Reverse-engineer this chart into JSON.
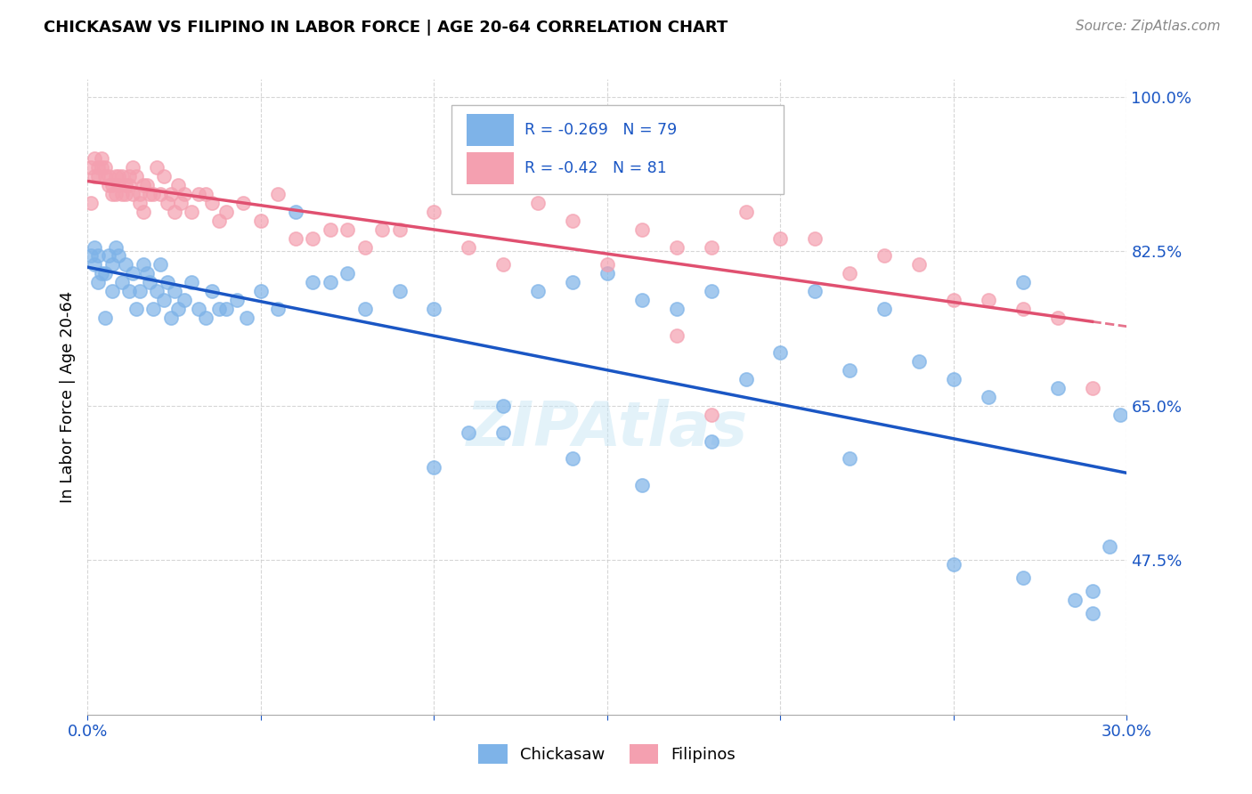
{
  "title": "CHICKASAW VS FILIPINO IN LABOR FORCE | AGE 20-64 CORRELATION CHART",
  "source": "Source: ZipAtlas.com",
  "ylabel": "In Labor Force | Age 20-64",
  "xlim": [
    0.0,
    0.3
  ],
  "ylim": [
    0.3,
    1.02
  ],
  "yticks": [
    0.475,
    0.65,
    0.825,
    1.0
  ],
  "ytick_labels": [
    "47.5%",
    "65.0%",
    "82.5%",
    "100.0%"
  ],
  "xticks": [
    0.0,
    0.05,
    0.1,
    0.15,
    0.2,
    0.25,
    0.3
  ],
  "xtick_labels": [
    "0.0%",
    "",
    "",
    "",
    "",
    "",
    "30.0%"
  ],
  "chickasaw_R": -0.269,
  "chickasaw_N": 79,
  "filipino_R": -0.42,
  "filipino_N": 81,
  "chickasaw_color": "#7EB3E8",
  "filipino_color": "#F4A0B0",
  "trendline_chickasaw_color": "#1A56C4",
  "trendline_filipino_color": "#E05070",
  "watermark": "ZIPAtlas",
  "legend_label_chickasaw": "Chickasaw",
  "legend_label_filipino": "Filipinos",
  "chickasaw_x": [
    0.001,
    0.002,
    0.002,
    0.003,
    0.003,
    0.004,
    0.005,
    0.005,
    0.006,
    0.007,
    0.007,
    0.008,
    0.009,
    0.01,
    0.011,
    0.012,
    0.013,
    0.014,
    0.015,
    0.016,
    0.017,
    0.018,
    0.019,
    0.02,
    0.021,
    0.022,
    0.023,
    0.024,
    0.025,
    0.026,
    0.028,
    0.03,
    0.032,
    0.034,
    0.036,
    0.038,
    0.04,
    0.043,
    0.046,
    0.05,
    0.055,
    0.06,
    0.065,
    0.07,
    0.075,
    0.08,
    0.09,
    0.1,
    0.11,
    0.12,
    0.13,
    0.14,
    0.15,
    0.16,
    0.17,
    0.18,
    0.19,
    0.2,
    0.21,
    0.22,
    0.23,
    0.24,
    0.25,
    0.26,
    0.27,
    0.28,
    0.285,
    0.29,
    0.295,
    0.298,
    0.1,
    0.12,
    0.14,
    0.16,
    0.18,
    0.22,
    0.25,
    0.27,
    0.29
  ],
  "chickasaw_y": [
    0.82,
    0.81,
    0.83,
    0.79,
    0.82,
    0.8,
    0.75,
    0.8,
    0.82,
    0.81,
    0.78,
    0.83,
    0.82,
    0.79,
    0.81,
    0.78,
    0.8,
    0.76,
    0.78,
    0.81,
    0.8,
    0.79,
    0.76,
    0.78,
    0.81,
    0.77,
    0.79,
    0.75,
    0.78,
    0.76,
    0.77,
    0.79,
    0.76,
    0.75,
    0.78,
    0.76,
    0.76,
    0.77,
    0.75,
    0.78,
    0.76,
    0.87,
    0.79,
    0.79,
    0.8,
    0.76,
    0.78,
    0.76,
    0.62,
    0.65,
    0.78,
    0.79,
    0.8,
    0.77,
    0.76,
    0.78,
    0.68,
    0.71,
    0.78,
    0.69,
    0.76,
    0.7,
    0.68,
    0.66,
    0.79,
    0.67,
    0.43,
    0.44,
    0.49,
    0.64,
    0.58,
    0.62,
    0.59,
    0.56,
    0.61,
    0.59,
    0.47,
    0.455,
    0.415
  ],
  "filipino_x": [
    0.001,
    0.001,
    0.002,
    0.002,
    0.003,
    0.003,
    0.004,
    0.004,
    0.005,
    0.005,
    0.006,
    0.006,
    0.007,
    0.007,
    0.008,
    0.008,
    0.009,
    0.009,
    0.01,
    0.01,
    0.011,
    0.011,
    0.012,
    0.012,
    0.013,
    0.013,
    0.014,
    0.015,
    0.015,
    0.016,
    0.016,
    0.017,
    0.018,
    0.019,
    0.02,
    0.021,
    0.022,
    0.023,
    0.024,
    0.025,
    0.026,
    0.027,
    0.028,
    0.03,
    0.032,
    0.034,
    0.036,
    0.038,
    0.04,
    0.045,
    0.05,
    0.055,
    0.06,
    0.065,
    0.07,
    0.075,
    0.08,
    0.085,
    0.09,
    0.1,
    0.11,
    0.12,
    0.13,
    0.14,
    0.15,
    0.16,
    0.17,
    0.18,
    0.19,
    0.2,
    0.21,
    0.22,
    0.23,
    0.24,
    0.25,
    0.26,
    0.27,
    0.28,
    0.29,
    0.17,
    0.18
  ],
  "filipino_y": [
    0.92,
    0.88,
    0.91,
    0.93,
    0.92,
    0.91,
    0.92,
    0.93,
    0.91,
    0.92,
    0.91,
    0.9,
    0.89,
    0.9,
    0.91,
    0.89,
    0.9,
    0.91,
    0.89,
    0.91,
    0.9,
    0.89,
    0.91,
    0.9,
    0.92,
    0.89,
    0.91,
    0.88,
    0.89,
    0.9,
    0.87,
    0.9,
    0.89,
    0.89,
    0.92,
    0.89,
    0.91,
    0.88,
    0.89,
    0.87,
    0.9,
    0.88,
    0.89,
    0.87,
    0.89,
    0.89,
    0.88,
    0.86,
    0.87,
    0.88,
    0.86,
    0.89,
    0.84,
    0.84,
    0.85,
    0.85,
    0.83,
    0.85,
    0.85,
    0.87,
    0.83,
    0.81,
    0.88,
    0.86,
    0.81,
    0.85,
    0.83,
    0.83,
    0.87,
    0.84,
    0.84,
    0.8,
    0.82,
    0.81,
    0.77,
    0.77,
    0.76,
    0.75,
    0.67,
    0.73,
    0.64
  ]
}
